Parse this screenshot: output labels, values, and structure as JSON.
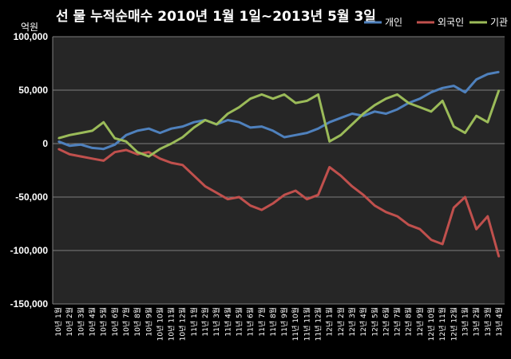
{
  "chart_data": {
    "type": "line",
    "title": "선 물 누적순매수 2010년 1월 1일~2013년 5월 3일",
    "ylabel": "억원",
    "ylim": [
      -150000,
      100000
    ],
    "ytick_values": [
      100000,
      50000,
      0,
      -50000,
      -100000,
      -150000
    ],
    "ytick_labels": [
      "100,000",
      "50,000",
      "0",
      "-50,000",
      "-100,000",
      "-150,000"
    ],
    "grid": "horizontal",
    "legend_position": "top-right",
    "x": [
      "10년 1월",
      "10년 2월",
      "10년 3월",
      "10년 4월",
      "10년 5월",
      "10년 6월",
      "10년 7월",
      "10년 8월",
      "10년 9월",
      "10년 10월",
      "10년 11월",
      "10년 12월",
      "11년 1월",
      "11년 2월",
      "11년 3월",
      "11년 4월",
      "11년 5월",
      "11년 6월",
      "11년 7월",
      "11년 8월",
      "11년 9월",
      "11년 10월",
      "11년 11월",
      "11년 12월",
      "12년 1월",
      "12년 2월",
      "12년 3월",
      "12년 4월",
      "12년 5월",
      "12년 6월",
      "12년 7월",
      "12년 8월",
      "12년 9월",
      "12년 10월",
      "12년 11월",
      "12년 12월",
      "13년 1월",
      "13년 2월",
      "13년 3월",
      "13년 4월"
    ],
    "series": [
      {
        "name": "개인",
        "color": "#4f81bd",
        "values": [
          2000,
          -2000,
          -1000,
          -4000,
          -5000,
          -1000,
          8000,
          12000,
          14000,
          10000,
          14000,
          16000,
          20000,
          22000,
          18000,
          22000,
          20000,
          15000,
          16000,
          12000,
          6000,
          8000,
          10000,
          14000,
          20000,
          24000,
          28000,
          26000,
          30000,
          28000,
          32000,
          38000,
          42000,
          48000,
          52000,
          54000,
          48000,
          60000,
          65000,
          67000
        ]
      },
      {
        "name": "외국인",
        "color": "#c0504d",
        "values": [
          -5000,
          -10000,
          -12000,
          -14000,
          -16000,
          -8000,
          -6000,
          -10000,
          -8000,
          -14000,
          -18000,
          -20000,
          -30000,
          -40000,
          -46000,
          -52000,
          -50000,
          -58000,
          -62000,
          -56000,
          -48000,
          -44000,
          -52000,
          -48000,
          -22000,
          -30000,
          -40000,
          -48000,
          -58000,
          -64000,
          -68000,
          -76000,
          -80000,
          -90000,
          -94000,
          -60000,
          -50000,
          -80000,
          -68000,
          -106000
        ]
      },
      {
        "name": "기관",
        "color": "#9bbb59",
        "values": [
          5000,
          8000,
          10000,
          12000,
          20000,
          5000,
          2000,
          -8000,
          -12000,
          -5000,
          0,
          6000,
          15000,
          22000,
          18000,
          28000,
          34000,
          42000,
          46000,
          42000,
          46000,
          38000,
          40000,
          46000,
          2000,
          8000,
          18000,
          28000,
          36000,
          42000,
          46000,
          38000,
          34000,
          30000,
          40000,
          16000,
          10000,
          26000,
          20000,
          50000
        ]
      }
    ]
  }
}
